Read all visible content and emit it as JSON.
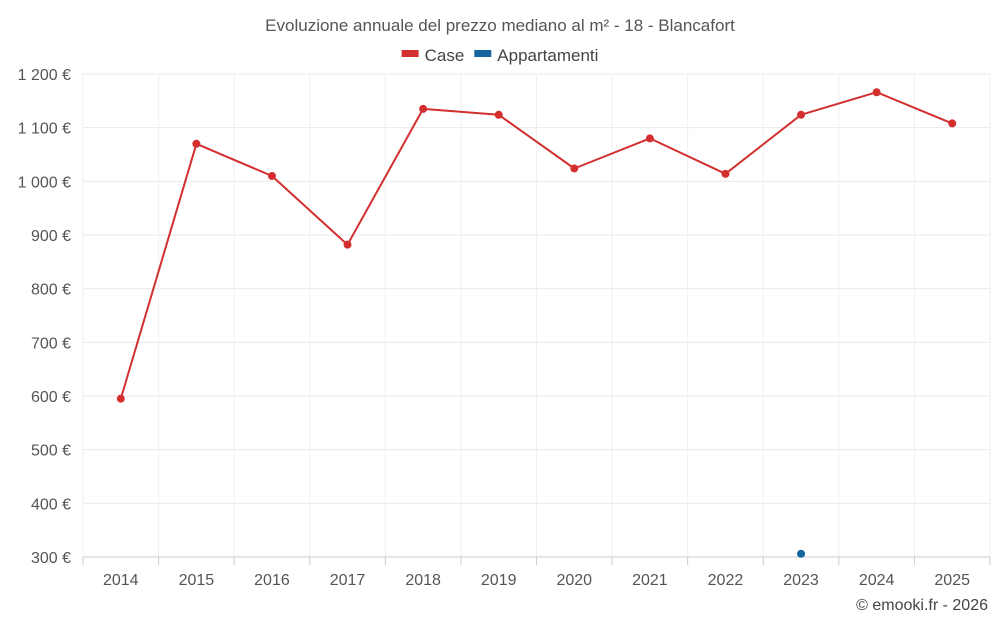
{
  "chart_data": {
    "type": "line",
    "title": "Evoluzione annuale del prezzo mediano al m² - 18 - Blancafort",
    "categories": [
      "2014",
      "2015",
      "2016",
      "2017",
      "2018",
      "2019",
      "2020",
      "2021",
      "2022",
      "2023",
      "2024",
      "2025"
    ],
    "series": [
      {
        "name": "Case",
        "color": "#d32f2f",
        "values": [
          595,
          1070,
          1010,
          882,
          1135,
          1124,
          1024,
          1080,
          1014,
          1124,
          1166,
          1108
        ]
      },
      {
        "name": "Appartamenti",
        "color": "#1565a0",
        "values": [
          null,
          null,
          null,
          null,
          null,
          null,
          null,
          null,
          null,
          306,
          null,
          null
        ]
      }
    ],
    "ylim": [
      300,
      1200
    ],
    "yticks": [
      300,
      400,
      500,
      600,
      700,
      800,
      900,
      1000,
      1100,
      1200
    ],
    "ytick_labels": [
      "300 €",
      "400 €",
      "500 €",
      "600 €",
      "700 €",
      "800 €",
      "900 €",
      "1 000 €",
      "1 100 €",
      "1 200 €"
    ],
    "grid": true,
    "legend_position": "top-center",
    "credit": "© emooki.fr - 2026"
  }
}
